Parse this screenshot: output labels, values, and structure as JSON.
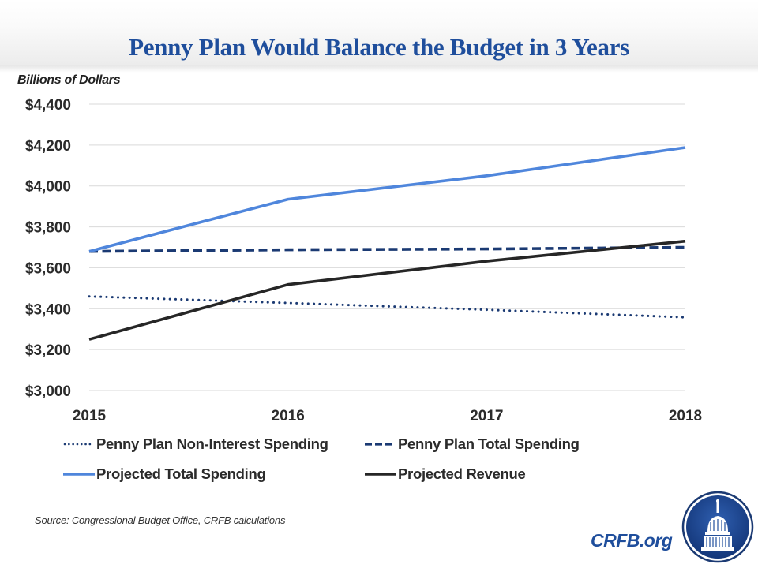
{
  "header": {
    "title": "Penny Plan Would Balance the Budget in 3 Years",
    "units_label": "Billions of Dollars"
  },
  "footer": {
    "source": "Source: Congressional Budget Office, CRFB calculations",
    "brand": "CRFB.org",
    "logo_icon": "capitol-dome-seal-icon"
  },
  "colors": {
    "title": "#1f4e9c",
    "penny_non_interest": "#1b3a73",
    "penny_total": "#1b3a73",
    "projected_total": "#4f86dc",
    "projected_revenue": "#262626",
    "gridline": "#d9d9d9",
    "brand": "#1f4e9c"
  },
  "chart_data": {
    "type": "line",
    "title": "Penny Plan Would Balance the Budget in 3 Years",
    "ylabel": "Billions of Dollars",
    "xlabel": "",
    "x": [
      "2015",
      "2016",
      "2017",
      "2018"
    ],
    "ylim": [
      3000,
      4400
    ],
    "yticks": [
      3000,
      3200,
      3400,
      3600,
      3800,
      4000,
      4200,
      4400
    ],
    "ytick_labels": [
      "$3,000",
      "$3,200",
      "$3,400",
      "$3,600",
      "$3,800",
      "$4,000",
      "$4,200",
      "$4,400"
    ],
    "grid": true,
    "legend_position": "bottom",
    "series": [
      {
        "name": "Penny Plan Non-Interest Spending",
        "style": "dotted",
        "color": "#1b3a73",
        "values": [
          3460,
          3428,
          3395,
          3358
        ]
      },
      {
        "name": "Penny Plan Total Spending",
        "style": "dashed",
        "color": "#1b3a73",
        "values": [
          3680,
          3688,
          3692,
          3700
        ]
      },
      {
        "name": "Projected Total Spending",
        "style": "solid",
        "color": "#4f86dc",
        "values": [
          3680,
          3935,
          4050,
          4188
        ]
      },
      {
        "name": "Projected Revenue",
        "style": "solid",
        "color": "#262626",
        "values": [
          3250,
          3518,
          3632,
          3730
        ]
      }
    ]
  }
}
